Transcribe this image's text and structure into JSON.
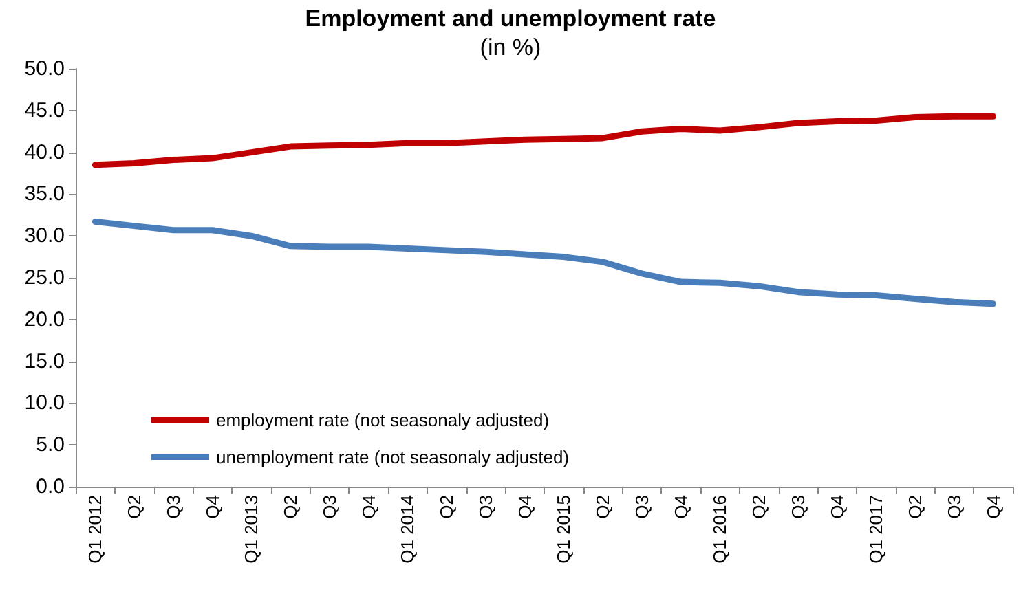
{
  "chart_data": {
    "type": "line",
    "title": "Employment and unemployment rate",
    "subtitle": "(in %)",
    "categories": [
      "Q1 2012",
      "Q2",
      "Q3",
      "Q4",
      "Q1 2013",
      "Q2",
      "Q3",
      "Q4",
      "Q1 2014",
      "Q2",
      "Q3",
      "Q4",
      "Q1 2015",
      "Q2",
      "Q3",
      "Q4",
      "Q1 2016",
      "Q2",
      "Q3",
      "Q4",
      "Q1 2017",
      "Q2",
      "Q3",
      "Q4"
    ],
    "series": [
      {
        "name": "employment rate (not seasonaly adjusted)",
        "color": "#c00000",
        "values": [
          38.5,
          38.7,
          39.1,
          39.3,
          40.0,
          40.7,
          40.8,
          40.9,
          41.1,
          41.1,
          41.3,
          41.5,
          41.6,
          41.7,
          42.5,
          42.8,
          42.6,
          43.0,
          43.5,
          43.7,
          43.8,
          44.2,
          44.3,
          44.3
        ]
      },
      {
        "name": "unemployment rate (not seasonaly adjusted)",
        "color": "#4a7ebb",
        "values": [
          31.7,
          31.2,
          30.7,
          30.7,
          30.0,
          28.8,
          28.7,
          28.7,
          28.5,
          28.3,
          28.1,
          27.8,
          27.5,
          26.9,
          25.5,
          24.5,
          24.4,
          24.0,
          23.3,
          23.0,
          22.9,
          22.5,
          22.1,
          21.9
        ]
      }
    ],
    "ylim": [
      0,
      50
    ],
    "yticks": [
      {
        "value": 0,
        "label": "0.0"
      },
      {
        "value": 5,
        "label": "5.0"
      },
      {
        "value": 10,
        "label": "10.0"
      },
      {
        "value": 15,
        "label": "15.0"
      },
      {
        "value": 20,
        "label": "20.0"
      },
      {
        "value": 25,
        "label": "25.0"
      },
      {
        "value": 30,
        "label": "30.0"
      },
      {
        "value": 35,
        "label": "35.0"
      },
      {
        "value": 40,
        "label": "40.0"
      },
      {
        "value": 45,
        "label": "45.0"
      },
      {
        "value": 50,
        "label": "50.0"
      }
    ],
    "grid": false,
    "legend": "bottom left",
    "marker": "none",
    "line_style": "solid"
  }
}
